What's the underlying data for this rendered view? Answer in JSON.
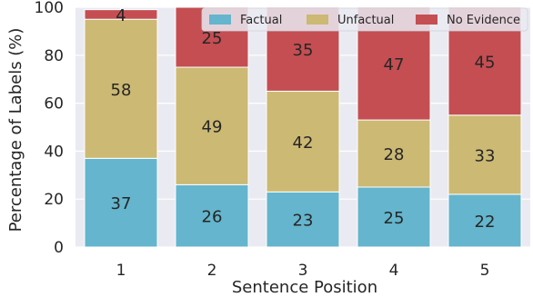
{
  "chart_data": {
    "type": "bar",
    "stacked": true,
    "categories": [
      "1",
      "2",
      "3",
      "4",
      "5"
    ],
    "series": [
      {
        "name": "Factual",
        "color": "#64b5cd",
        "values": [
          37,
          26,
          23,
          25,
          22
        ]
      },
      {
        "name": "Unfactual",
        "color": "#ccb974",
        "values": [
          58,
          49,
          42,
          28,
          33
        ]
      },
      {
        "name": "No Evidence",
        "color": "#c44e52",
        "values": [
          4,
          25,
          35,
          47,
          45
        ]
      }
    ],
    "xlabel": "Sentence Position",
    "ylabel": "Percentage of Labels (%)",
    "ylim": [
      0,
      100
    ],
    "yticks": [
      0,
      20,
      40,
      60,
      80,
      100
    ],
    "grid": true,
    "plot_background": "#eaeaf2",
    "legend_position": "top-right",
    "legend_columns": 3
  }
}
